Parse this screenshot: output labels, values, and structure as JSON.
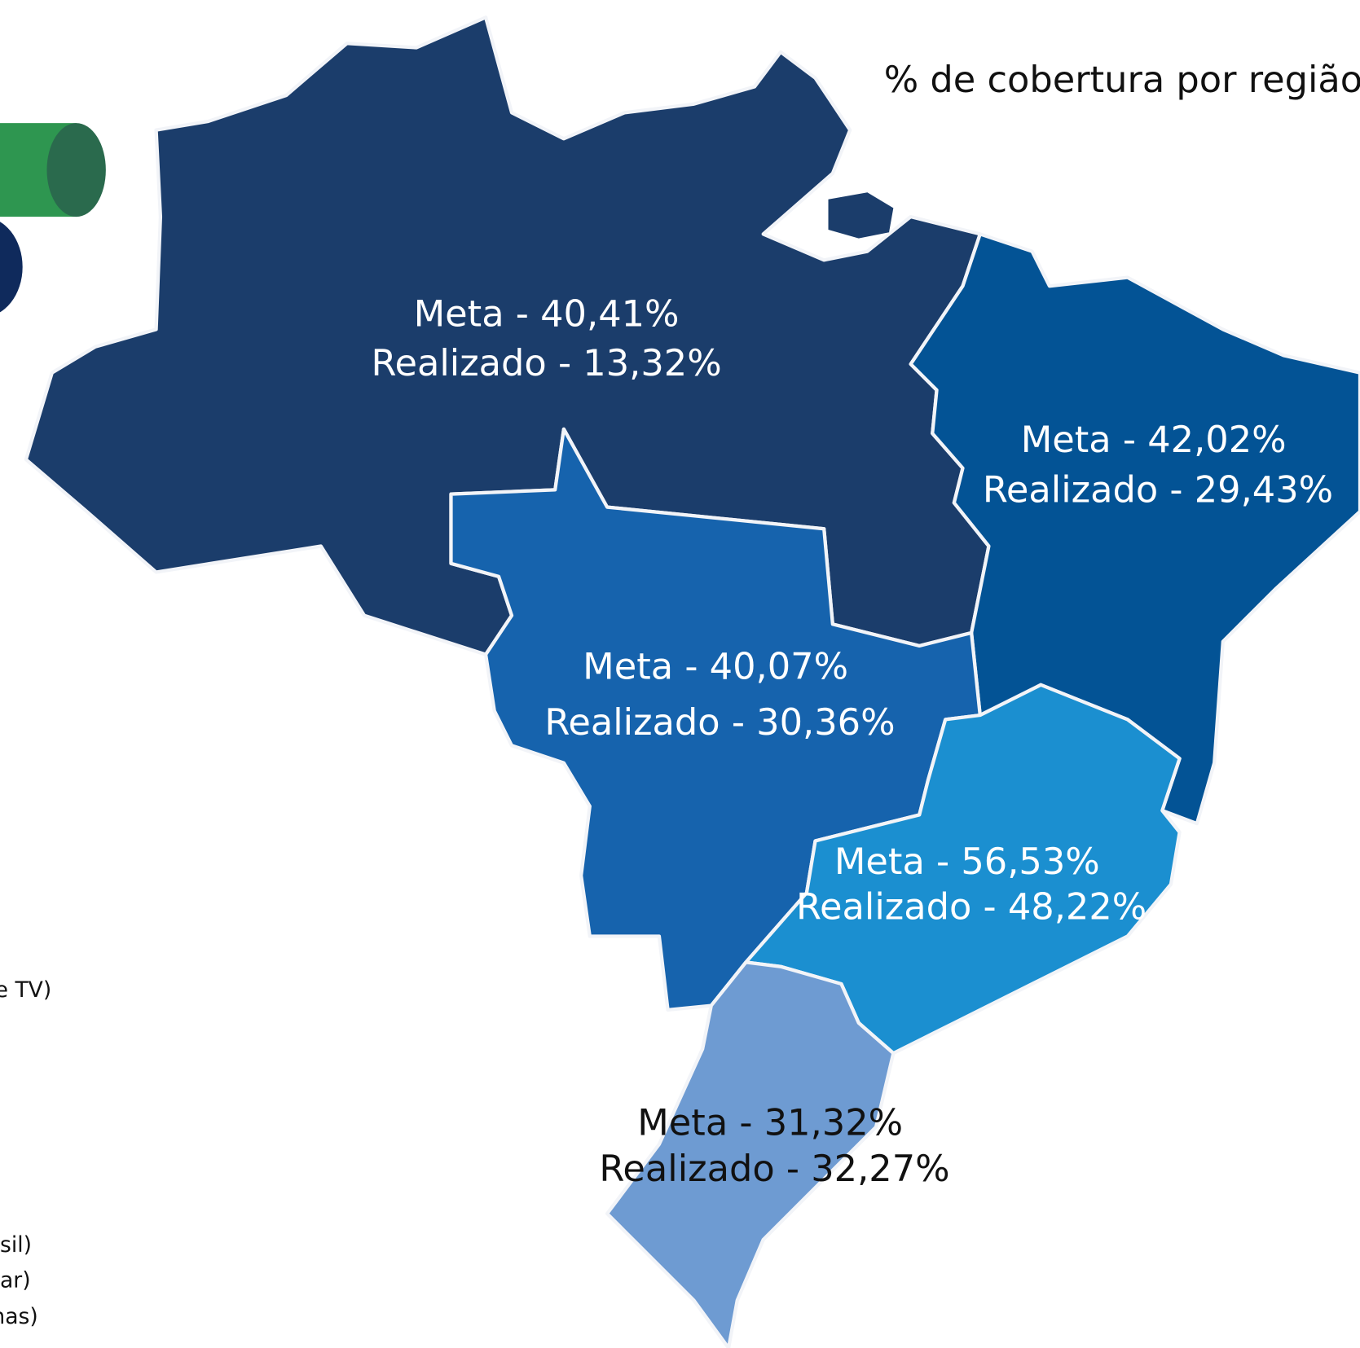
{
  "title": "% de cobertura por região",
  "regions": [
    {
      "meta": "Meta - 40,41%",
      "realizado": "Realizado - 13,32%",
      "color": "#1b3d6b",
      "text_color": "#ffffff"
    },
    {
      "meta": "Meta - 42,02%",
      "realizado": "Realizado - 29,43%",
      "color": "#035395",
      "text_color": "#ffffff"
    },
    {
      "meta": "Meta - 40,07%",
      "realizado": "Realizado - 30,36%",
      "color": "#1663ad",
      "text_color": "#ffffff"
    },
    {
      "meta": "Meta - 56,53%",
      "realizado": "Realizado - 48,22%",
      "color": "#1b8fd0",
      "text_color": "#ffffff"
    },
    {
      "meta": "Meta - 31,32%",
      "realizado": "Realizado - 32,27%",
      "color": "#6e9bd2",
      "text_color": "#111111"
    }
  ],
  "side_texts": [
    "e TV)",
    "sil)",
    "ar)",
    "nas)"
  ]
}
